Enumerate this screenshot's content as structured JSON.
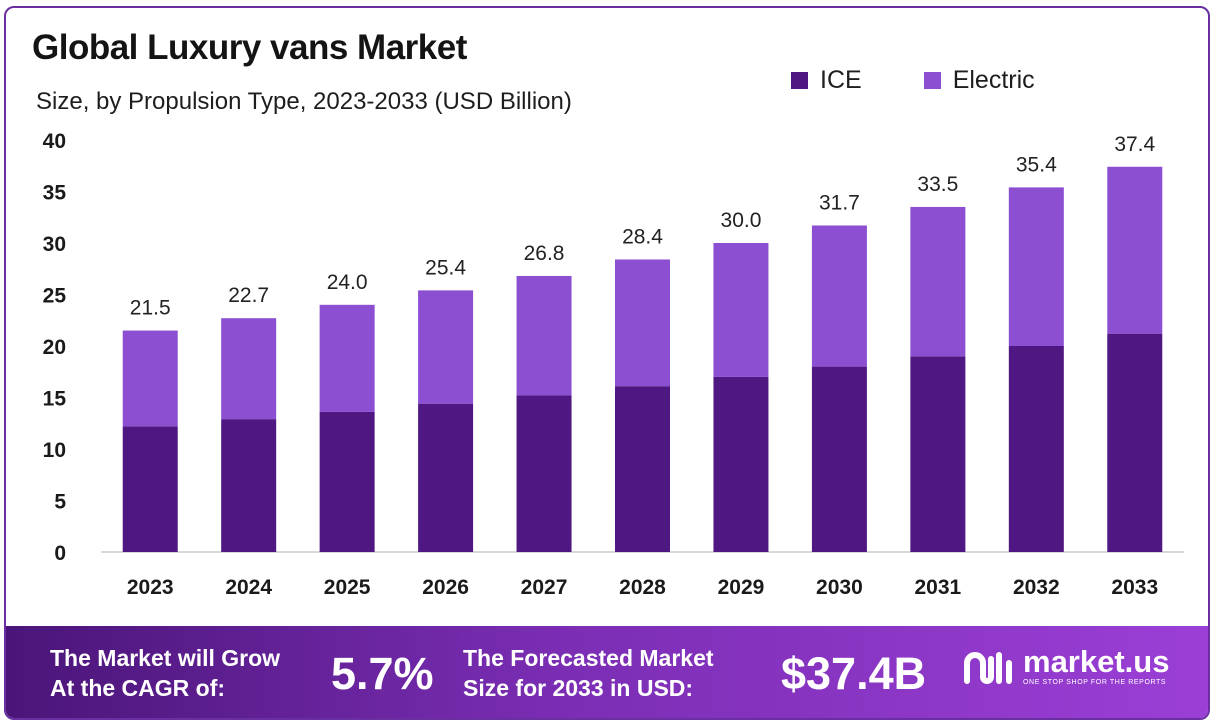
{
  "colors": {
    "ice": "#4f1782",
    "electric": "#8c4fd2",
    "axis_text": "#1a1a1a",
    "grid": "#cccccc"
  },
  "chart_data": {
    "type": "bar",
    "stacked": true,
    "title": "Global Luxury vans Market",
    "subtitle": "Size, by Propulsion Type, 2023-2033 (USD Billion)",
    "categories": [
      "2023",
      "2024",
      "2025",
      "2026",
      "2027",
      "2028",
      "2029",
      "2030",
      "2031",
      "2032",
      "2033"
    ],
    "series": [
      {
        "name": "ICE",
        "values": [
          12.2,
          12.9,
          13.6,
          14.4,
          15.2,
          16.1,
          17.0,
          18.0,
          19.0,
          20.0,
          21.2
        ]
      },
      {
        "name": "Electric",
        "values": [
          9.3,
          9.8,
          10.4,
          11.0,
          11.6,
          12.3,
          13.0,
          13.7,
          14.5,
          15.4,
          16.2
        ]
      }
    ],
    "totals": [
      "21.5",
      "22.7",
      "24.0",
      "25.4",
      "26.8",
      "28.4",
      "30.0",
      "31.7",
      "33.5",
      "35.4",
      "37.4"
    ],
    "ylim": [
      0,
      40
    ],
    "yticks": [
      "0",
      "5",
      "10",
      "15",
      "20",
      "25",
      "30",
      "35",
      "40"
    ],
    "legend_position": "top-right",
    "xlabel": "",
    "ylabel": ""
  },
  "footer": {
    "cagr_label_line1": "The Market will Grow",
    "cagr_label_line2": "At the CAGR of:",
    "cagr_value": "5.7%",
    "forecast_label_line1": "The Forecasted Market",
    "forecast_label_line2": "Size for 2033 in USD:",
    "forecast_value": "$37.4B",
    "brand_name": "market.us",
    "brand_tagline": "ONE STOP SHOP FOR THE REPORTS"
  }
}
